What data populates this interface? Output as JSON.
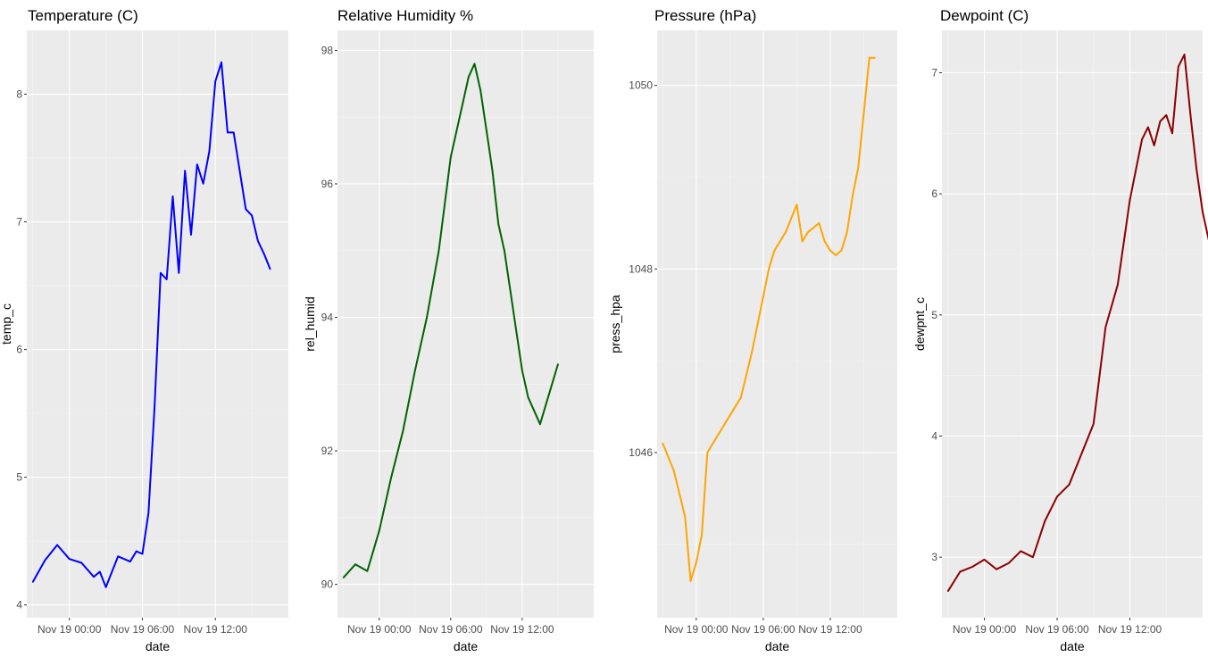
{
  "chart_data": [
    {
      "type": "line",
      "title": "Temperature (C)",
      "xlabel": "date",
      "ylabel": "temp_c",
      "color": "#0000ff",
      "x_ticks": [
        "Nov 19 00:00",
        "Nov 19 06:00",
        "Nov 19 12:00"
      ],
      "y_ticks": [
        "4",
        "5",
        "6",
        "7",
        "8"
      ],
      "xlim": [
        "Nov 18 20:30",
        "Nov 19 18:00"
      ],
      "ylim": [
        3.9,
        8.5
      ],
      "grid": true,
      "x": [
        "Nov 18 21:00",
        "Nov 18 22:00",
        "Nov 18 23:00",
        "Nov 19 00:00",
        "Nov 19 01:00",
        "Nov 19 02:00",
        "Nov 19 02:30",
        "Nov 19 03:00",
        "Nov 19 04:00",
        "Nov 19 05:00",
        "Nov 19 05:30",
        "Nov 19 06:00",
        "Nov 19 06:30",
        "Nov 19 07:00",
        "Nov 19 07:30",
        "Nov 19 08:00",
        "Nov 19 08:30",
        "Nov 19 09:00",
        "Nov 19 09:30",
        "Nov 19 10:00",
        "Nov 19 10:30",
        "Nov 19 11:00",
        "Nov 19 11:30",
        "Nov 19 12:00",
        "Nov 19 12:30",
        "Nov 19 13:00",
        "Nov 19 13:30",
        "Nov 19 14:00",
        "Nov 19 14:30",
        "Nov 19 15:00",
        "Nov 19 15:30",
        "Nov 19 16:00",
        "Nov 19 16:30"
      ],
      "values": [
        4.18,
        4.35,
        4.47,
        4.36,
        4.33,
        4.22,
        4.26,
        4.14,
        4.38,
        4.34,
        4.42,
        4.4,
        4.72,
        5.55,
        6.6,
        6.55,
        7.2,
        6.6,
        7.4,
        6.9,
        7.45,
        7.3,
        7.55,
        8.1,
        8.25,
        7.7,
        7.7,
        7.4,
        7.1,
        7.05,
        6.85,
        6.75,
        6.63
      ]
    },
    {
      "type": "line",
      "title": "Relative Humidity %",
      "xlabel": "date",
      "ylabel": "rel_humid",
      "color": "#006400",
      "x_ticks": [
        "Nov 19 00:00",
        "Nov 19 06:00",
        "Nov 19 12:00"
      ],
      "y_ticks": [
        "90",
        "92",
        "94",
        "96",
        "98"
      ],
      "xlim": [
        "Nov 18 20:30",
        "Nov 19 18:00"
      ],
      "ylim": [
        89.5,
        98.3
      ],
      "grid": true,
      "x": [
        "Nov 18 21:00",
        "Nov 18 22:00",
        "Nov 18 23:00",
        "Nov 19 00:00",
        "Nov 19 01:00",
        "Nov 19 02:00",
        "Nov 19 03:00",
        "Nov 19 04:00",
        "Nov 19 05:00",
        "Nov 19 06:00",
        "Nov 19 07:00",
        "Nov 19 07:30",
        "Nov 19 08:00",
        "Nov 19 08:30",
        "Nov 19 09:00",
        "Nov 19 09:30",
        "Nov 19 10:00",
        "Nov 19 10:30",
        "Nov 19 11:00",
        "Nov 19 11:30",
        "Nov 19 12:00",
        "Nov 19 12:30",
        "Nov 19 13:00",
        "Nov 19 13:30",
        "Nov 19 14:00",
        "Nov 19 14:30",
        "Nov 19 15:00"
      ],
      "values": [
        90.1,
        90.3,
        90.2,
        90.8,
        91.6,
        92.3,
        93.2,
        94.0,
        95.0,
        96.4,
        97.2,
        97.6,
        97.8,
        97.4,
        96.8,
        96.2,
        95.4,
        95.0,
        94.4,
        93.8,
        93.2,
        92.8,
        92.6,
        92.4,
        92.7,
        93.0,
        93.3
      ]
    },
    {
      "type": "line",
      "title": "Pressure (hPa)",
      "xlabel": "date",
      "ylabel": "press_hpa",
      "color": "#ffa500",
      "x_ticks": [
        "Nov 19 00:00",
        "Nov 19 06:00",
        "Nov 19 12:00"
      ],
      "y_ticks": [
        "1046",
        "1048",
        "1050"
      ],
      "xlim": [
        "Nov 18 20:30",
        "Nov 19 18:00"
      ],
      "ylim": [
        1044.2,
        1050.6
      ],
      "grid": true,
      "x": [
        "Nov 18 21:00",
        "Nov 18 22:00",
        "Nov 18 23:00",
        "Nov 18 23:30",
        "Nov 19 00:00",
        "Nov 19 00:30",
        "Nov 19 01:00",
        "Nov 19 02:00",
        "Nov 19 03:00",
        "Nov 19 04:00",
        "Nov 19 05:00",
        "Nov 19 06:00",
        "Nov 19 06:30",
        "Nov 19 07:00",
        "Nov 19 08:00",
        "Nov 19 09:00",
        "Nov 19 09:30",
        "Nov 19 10:00",
        "Nov 19 11:00",
        "Nov 19 11:30",
        "Nov 19 12:00",
        "Nov 19 12:30",
        "Nov 19 13:00",
        "Nov 19 13:30",
        "Nov 19 14:00",
        "Nov 19 14:30",
        "Nov 19 15:00",
        "Nov 19 15:30",
        "Nov 19 16:00"
      ],
      "values": [
        1046.1,
        1045.8,
        1045.3,
        1044.6,
        1044.8,
        1045.1,
        1046.0,
        1046.2,
        1046.4,
        1046.6,
        1047.1,
        1047.7,
        1048.0,
        1048.2,
        1048.4,
        1048.7,
        1048.3,
        1048.4,
        1048.5,
        1048.3,
        1048.2,
        1048.15,
        1048.2,
        1048.4,
        1048.8,
        1049.1,
        1049.7,
        1050.3,
        1050.3
      ]
    },
    {
      "type": "line",
      "title": "Dewpoint (C)",
      "xlabel": "date",
      "ylabel": "dewpnt_c",
      "color": "#8b0000",
      "x_ticks": [
        "Nov 19 00:00",
        "Nov 19 06:00",
        "Nov 19 12:00"
      ],
      "y_ticks": [
        "3",
        "4",
        "5",
        "6",
        "7"
      ],
      "xlim": [
        "Nov 18 20:30",
        "Nov 19 18:00"
      ],
      "ylim": [
        2.5,
        7.35
      ],
      "grid": true,
      "x": [
        "Nov 18 21:00",
        "Nov 18 22:00",
        "Nov 18 23:00",
        "Nov 19 00:00",
        "Nov 19 01:00",
        "Nov 19 02:00",
        "Nov 19 03:00",
        "Nov 19 04:00",
        "Nov 19 05:00",
        "Nov 19 06:00",
        "Nov 19 07:00",
        "Nov 19 08:00",
        "Nov 19 09:00",
        "Nov 19 10:00",
        "Nov 19 11:00",
        "Nov 19 12:00",
        "Nov 19 12:30",
        "Nov 19 13:00",
        "Nov 19 13:30",
        "Nov 19 14:00",
        "Nov 19 14:30",
        "Nov 19 15:00",
        "Nov 19 15:30",
        "Nov 19 16:00",
        "Nov 19 16:30",
        "Nov 19 17:00",
        "Nov 19 17:30",
        "Nov 19 18:00",
        "Nov 19 18:30"
      ],
      "values": [
        2.72,
        2.88,
        2.92,
        2.98,
        2.9,
        2.95,
        3.05,
        3.0,
        3.3,
        3.5,
        3.6,
        3.85,
        4.1,
        4.9,
        5.25,
        5.95,
        6.2,
        6.45,
        6.55,
        6.4,
        6.6,
        6.65,
        6.5,
        7.05,
        7.15,
        6.65,
        6.2,
        5.85,
        5.62
      ]
    }
  ]
}
